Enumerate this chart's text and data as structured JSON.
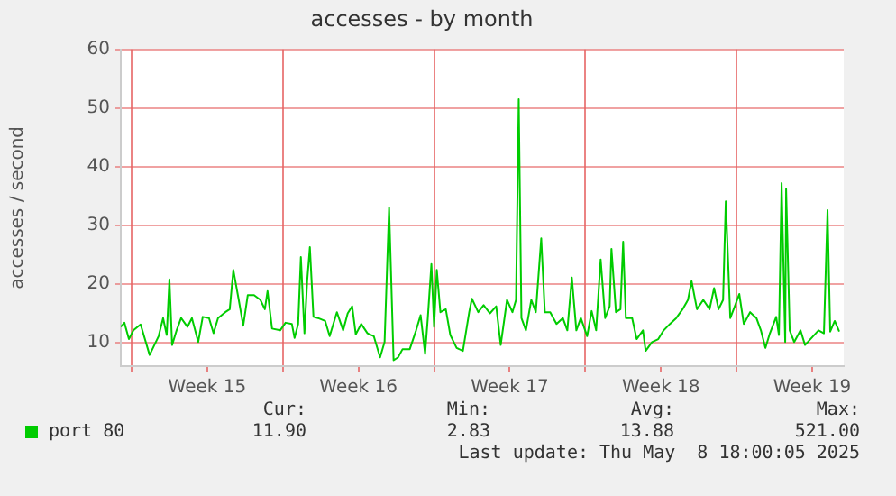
{
  "chart_data": {
    "type": "line",
    "title": "accesses - by month",
    "ylabel": "accesses / second",
    "xlim": [
      "2025-04-05T12:00",
      "2025-05-08T23:00"
    ],
    "ylim": [
      6,
      60
    ],
    "yticks": [
      10,
      20,
      30,
      40,
      50,
      60
    ],
    "xticks": [
      {
        "value": "2025-04-06",
        "label": null
      },
      {
        "value": "2025-04-09T12:00",
        "label": "Week 15"
      },
      {
        "value": "2025-04-13",
        "label": null
      },
      {
        "value": "2025-04-16T12:00",
        "label": "Week 16"
      },
      {
        "value": "2025-04-20",
        "label": null
      },
      {
        "value": "2025-04-23T12:00",
        "label": "Week 17"
      },
      {
        "value": "2025-04-27",
        "label": null
      },
      {
        "value": "2025-04-30T12:00",
        "label": "Week 18"
      },
      {
        "value": "2025-05-04",
        "label": null
      },
      {
        "value": "2025-05-07T12:00",
        "label": "Week 19"
      }
    ],
    "grid": true,
    "legend": "bottom left",
    "marker": "none",
    "annotations": [
      "Cur:",
      "Min:",
      "Avg:",
      "Max:",
      "11.90",
      "2.83",
      "13.88",
      "521.00",
      "Last update: Thu May  8 18:00:05 2025"
    ],
    "x": [
      "2025-04-05T12:00",
      "2025-04-05T16:00",
      "2025-04-05T21:00",
      "2025-04-06T02:00",
      "2025-04-06T10:00",
      "2025-04-06T20:00",
      "2025-04-07T06:00",
      "2025-04-07T11:00",
      "2025-04-07T15:00",
      "2025-04-07T18:00",
      "2025-04-07T21:00",
      "2025-04-08T02:00",
      "2025-04-08T07:00",
      "2025-04-08T14:00",
      "2025-04-08T19:00",
      "2025-04-09T02:00",
      "2025-04-09T07:00",
      "2025-04-09T14:00",
      "2025-04-09T19:00",
      "2025-04-10T00:00",
      "2025-04-10T08:00",
      "2025-04-10T13:00",
      "2025-04-10T17:00",
      "2025-04-10T23:00",
      "2025-04-11T04:00",
      "2025-04-11T09:00",
      "2025-04-11T16:00",
      "2025-04-11T23:00",
      "2025-04-12T04:00",
      "2025-04-12T07:00",
      "2025-04-12T12:00",
      "2025-04-12T21:00",
      "2025-04-13T03:00",
      "2025-04-13T10:00",
      "2025-04-13T13:00",
      "2025-04-13T17:00",
      "2025-04-13T20:00",
      "2025-04-14T00:00",
      "2025-04-14T03:00",
      "2025-04-14T06:00",
      "2025-04-14T10:00",
      "2025-04-14T15:00",
      "2025-04-14T23:00",
      "2025-04-15T04:00",
      "2025-04-15T12:00",
      "2025-04-15T19:00",
      "2025-04-16T00:00",
      "2025-04-16T05:00",
      "2025-04-16T09:00",
      "2025-04-16T15:00",
      "2025-04-16T22:00",
      "2025-04-17T05:00",
      "2025-04-17T12:00",
      "2025-04-17T17:00",
      "2025-04-17T22:00",
      "2025-04-18T03:00",
      "2025-04-18T08:00",
      "2025-04-18T13:00",
      "2025-04-18T21:00",
      "2025-04-19T04:00",
      "2025-04-19T09:00",
      "2025-04-19T14:00",
      "2025-04-19T17:00",
      "2025-04-19T21:00",
      "2025-04-20T00:00",
      "2025-04-20T03:00",
      "2025-04-20T07:00",
      "2025-04-20T13:00",
      "2025-04-20T18:00",
      "2025-04-21T01:00",
      "2025-04-21T08:00",
      "2025-04-21T15:00",
      "2025-04-21T18:00",
      "2025-04-22T01:00",
      "2025-04-22T07:00",
      "2025-04-22T14:00",
      "2025-04-22T21:00",
      "2025-04-23T02:00",
      "2025-04-23T09:00",
      "2025-04-23T15:00",
      "2025-04-23T19:00",
      "2025-04-23T22:00",
      "2025-04-24T01:00",
      "2025-04-24T06:00",
      "2025-04-24T12:00",
      "2025-04-24T17:00",
      "2025-04-24T23:00",
      "2025-04-25T03:00",
      "2025-04-25T09:00",
      "2025-04-25T16:00",
      "2025-04-25T23:00",
      "2025-04-26T04:00",
      "2025-04-26T09:00",
      "2025-04-26T14:00",
      "2025-04-26T19:00",
      "2025-04-27T02:00",
      "2025-04-27T07:00",
      "2025-04-27T12:00",
      "2025-04-27T17:00",
      "2025-04-27T22:00",
      "2025-04-28T03:00",
      "2025-04-28T05:00",
      "2025-04-28T10:00",
      "2025-04-28T15:00",
      "2025-04-28T18:00",
      "2025-04-28T21:00",
      "2025-04-29T04:00",
      "2025-04-29T09:00",
      "2025-04-29T16:00",
      "2025-04-29T19:00",
      "2025-04-30T02:00",
      "2025-04-30T09:00",
      "2025-04-30T15:00",
      "2025-04-30T22:00",
      "2025-05-01T05:00",
      "2025-05-01T12:00",
      "2025-05-01T18:00",
      "2025-05-01T22:00",
      "2025-05-02T04:00",
      "2025-05-02T11:00",
      "2025-05-02T18:00",
      "2025-05-02T23:00",
      "2025-05-03T04:00",
      "2025-05-03T09:00",
      "2025-05-03T12:00",
      "2025-05-03T17:00",
      "2025-05-03T22:00",
      "2025-05-04T03:00",
      "2025-05-04T08:00",
      "2025-05-04T15:00",
      "2025-05-04T22:00",
      "2025-05-05T03:00",
      "2025-05-05T08:00",
      "2025-05-05T13:00",
      "2025-05-05T20:00",
      "2025-05-05T23:00",
      "2025-05-06T02:00",
      "2025-05-06T06:00",
      "2025-05-06T07:00",
      "2025-05-06T11:00",
      "2025-05-06T16:00",
      "2025-05-06T23:00",
      "2025-05-07T04:00",
      "2025-05-07T10:00",
      "2025-05-07T19:00",
      "2025-05-08T01:00",
      "2025-05-08T05:00",
      "2025-05-08T08:00",
      "2025-05-08T13:00",
      "2025-05-08T18:00"
    ],
    "series": [
      {
        "name": "port 80",
        "color": "#00cc00",
        "values": [
          12.7,
          13.4,
          10.6,
          12.1,
          13.1,
          7.9,
          11.1,
          14.2,
          11.3,
          20.8,
          9.6,
          12.1,
          14.2,
          12.7,
          14.2,
          10.1,
          14.4,
          14.2,
          11.6,
          14.2,
          15.2,
          15.7,
          22.4,
          17.3,
          12.9,
          18.1,
          18.1,
          17.3,
          15.7,
          18.8,
          12.4,
          12.1,
          13.4,
          13.2,
          10.8,
          13.2,
          24.6,
          11.6,
          20.5,
          26.3,
          14.4,
          14.2,
          13.7,
          11.1,
          15.2,
          12.1,
          15.0,
          16.2,
          11.4,
          13.2,
          11.6,
          11.1,
          7.5,
          10.1,
          33.1,
          7.0,
          7.5,
          8.9,
          8.9,
          12.1,
          14.7,
          8.1,
          14.2,
          23.4,
          12.7,
          22.4,
          15.2,
          15.7,
          11.3,
          9.1,
          8.6,
          15.2,
          17.5,
          15.2,
          16.4,
          15.0,
          16.2,
          9.6,
          17.3,
          15.2,
          17.3,
          51.5,
          14.2,
          12.1,
          17.3,
          15.2,
          27.8,
          15.2,
          15.2,
          13.2,
          14.2,
          12.1,
          21.1,
          12.1,
          14.2,
          11.1,
          15.4,
          12.1,
          24.2,
          14.2,
          16.2,
          26.0,
          15.2,
          15.7,
          27.2,
          14.2,
          14.2,
          10.6,
          12.1,
          8.6,
          10.1,
          10.6,
          12.1,
          13.2,
          14.2,
          15.7,
          17.3,
          20.5,
          15.7,
          17.3,
          15.7,
          19.3,
          15.7,
          17.3,
          34.1,
          14.2,
          16.2,
          18.3,
          13.2,
          15.2,
          14.2,
          12.1,
          9.1,
          11.6,
          14.4,
          11.3,
          37.2,
          10.1,
          36.2,
          12.1,
          10.1,
          12.1,
          9.6,
          10.6,
          12.1,
          11.6,
          32.6,
          11.9,
          13.7,
          11.9
        ]
      }
    ]
  }
}
